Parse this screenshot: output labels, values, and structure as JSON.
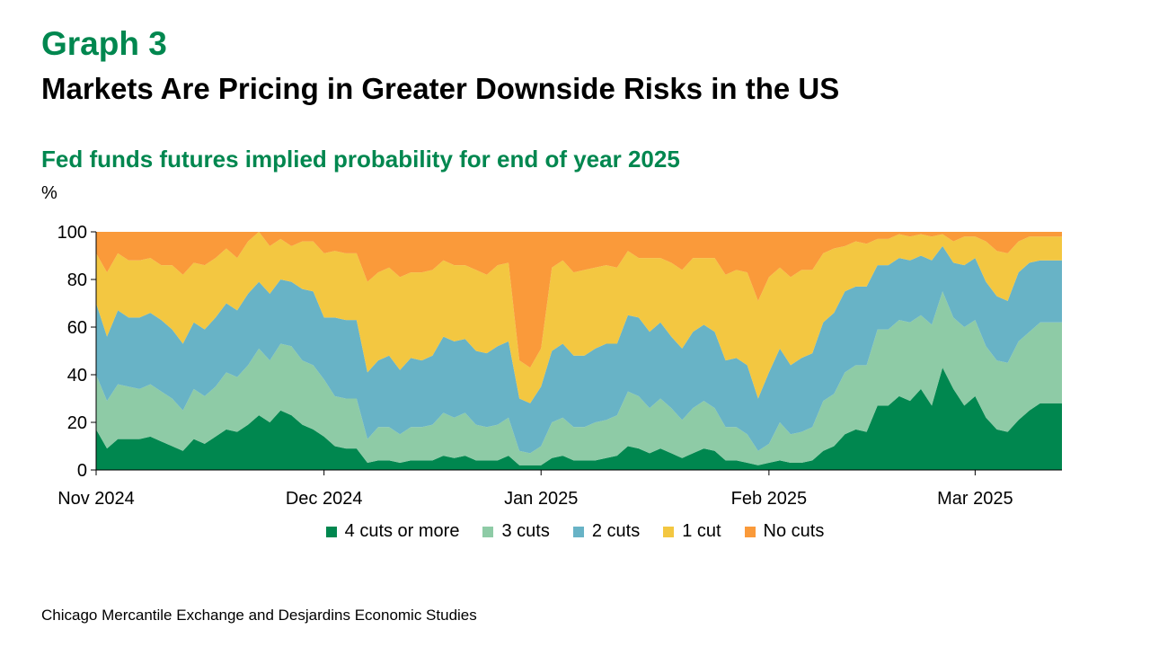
{
  "header": {
    "graph_label": "Graph 3",
    "title": "Markets Are Pricing in Greater Downside Risks in the US",
    "subtitle": "Fed funds futures implied probability for end of year 2025",
    "y_unit": "%"
  },
  "source": "Chicago Mercantile Exchange and Desjardins Economic Studies",
  "colors": {
    "4 cuts or more": "#00874F",
    "3 cuts": "#8ECBA6",
    "2 cuts": "#68B3C6",
    "1 cut": "#F3C741",
    "No cuts": "#FA9A3A"
  },
  "chart_data": {
    "type": "area",
    "stacked": true,
    "xlabel": "",
    "ylabel": "%",
    "ylim": [
      0,
      100
    ],
    "yticks": [
      "0",
      "20",
      "40",
      "60",
      "80",
      "100"
    ],
    "x_tick_labels": [
      "Nov 2024",
      "Dec 2024",
      "Jan 2025",
      "Feb 2025",
      "Mar 2025"
    ],
    "x_tick_positions": [
      0,
      21,
      41,
      62,
      81
    ],
    "legend_position": "bottom",
    "x": [
      0,
      1,
      2,
      3,
      4,
      5,
      6,
      7,
      8,
      9,
      10,
      11,
      12,
      13,
      14,
      15,
      16,
      17,
      18,
      19,
      20,
      21,
      22,
      23,
      24,
      25,
      26,
      27,
      28,
      29,
      30,
      31,
      32,
      33,
      34,
      35,
      36,
      37,
      38,
      39,
      40,
      41,
      42,
      43,
      44,
      45,
      46,
      47,
      48,
      49,
      50,
      51,
      52,
      53,
      54,
      55,
      56,
      57,
      58,
      59,
      60,
      61,
      62,
      63,
      64,
      65,
      66,
      67,
      68,
      69,
      70,
      71,
      72,
      73,
      74,
      75,
      76,
      77,
      78,
      79,
      80,
      81,
      82,
      83,
      84,
      85,
      86,
      87,
      88,
      89
    ],
    "series": [
      {
        "name": "4 cuts or more",
        "values": [
          17,
          9,
          13,
          13,
          13,
          14,
          12,
          10,
          8,
          13,
          11,
          14,
          17,
          16,
          19,
          23,
          20,
          25,
          23,
          19,
          17,
          14,
          10,
          9,
          9,
          3,
          4,
          4,
          3,
          4,
          4,
          4,
          6,
          5,
          6,
          4,
          4,
          4,
          6,
          2,
          2,
          2,
          5,
          6,
          4,
          4,
          4,
          5,
          6,
          10,
          9,
          7,
          9,
          7,
          5,
          7,
          9,
          8,
          4,
          4,
          3,
          2,
          3,
          4,
          3,
          3,
          4,
          8,
          10,
          15,
          17,
          16,
          27,
          27,
          31,
          29,
          34,
          27,
          43,
          34,
          27,
          31,
          22,
          17,
          16,
          21,
          25,
          28,
          28,
          28
        ]
      },
      {
        "name": "3 cuts",
        "values": [
          23,
          20,
          23,
          22,
          21,
          22,
          21,
          20,
          17,
          21,
          20,
          21,
          24,
          23,
          25,
          28,
          26,
          28,
          29,
          27,
          27,
          24,
          21,
          21,
          21,
          10,
          14,
          14,
          12,
          14,
          14,
          15,
          18,
          17,
          18,
          15,
          14,
          15,
          16,
          6,
          5,
          8,
          15,
          16,
          14,
          14,
          16,
          16,
          17,
          23,
          22,
          19,
          21,
          19,
          16,
          19,
          20,
          18,
          14,
          14,
          12,
          6,
          8,
          16,
          12,
          13,
          14,
          21,
          22,
          26,
          27,
          28,
          32,
          32,
          32,
          33,
          31,
          34,
          32,
          30,
          33,
          32,
          30,
          29,
          29,
          33,
          33,
          34,
          34,
          34
        ]
      },
      {
        "name": "2 cuts",
        "values": [
          30,
          27,
          31,
          29,
          30,
          30,
          30,
          29,
          28,
          28,
          28,
          29,
          29,
          28,
          30,
          28,
          28,
          27,
          27,
          30,
          31,
          26,
          33,
          33,
          33,
          28,
          28,
          30,
          27,
          29,
          28,
          29,
          32,
          32,
          31,
          31,
          31,
          33,
          32,
          22,
          21,
          25,
          30,
          31,
          30,
          30,
          31,
          32,
          30,
          32,
          33,
          32,
          32,
          30,
          30,
          32,
          32,
          32,
          28,
          29,
          29,
          22,
          30,
          31,
          29,
          31,
          31,
          33,
          34,
          34,
          33,
          33,
          27,
          27,
          26,
          26,
          25,
          27,
          19,
          23,
          26,
          26,
          27,
          27,
          26,
          29,
          29,
          26,
          26,
          26
        ]
      },
      {
        "name": "1 cut",
        "values": [
          21,
          27,
          24,
          24,
          24,
          23,
          23,
          27,
          29,
          25,
          27,
          25,
          23,
          22,
          22,
          21,
          20,
          17,
          15,
          20,
          21,
          27,
          28,
          28,
          28,
          38,
          37,
          37,
          39,
          36,
          37,
          36,
          32,
          32,
          31,
          34,
          33,
          34,
          33,
          16,
          15,
          16,
          35,
          35,
          35,
          36,
          34,
          33,
          32,
          27,
          25,
          31,
          27,
          31,
          33,
          31,
          28,
          31,
          36,
          37,
          39,
          41,
          40,
          34,
          37,
          37,
          35,
          29,
          27,
          19,
          19,
          18,
          11,
          11,
          10,
          10,
          9,
          10,
          5,
          9,
          12,
          9,
          17,
          19,
          20,
          13,
          11,
          10,
          10,
          10
        ]
      },
      {
        "name": "No cuts",
        "values": [
          9,
          17,
          9,
          12,
          12,
          11,
          14,
          14,
          18,
          13,
          14,
          11,
          7,
          11,
          4,
          0,
          6,
          3,
          6,
          4,
          4,
          9,
          8,
          9,
          9,
          21,
          17,
          15,
          19,
          17,
          17,
          16,
          12,
          14,
          14,
          16,
          18,
          14,
          13,
          54,
          57,
          49,
          15,
          12,
          17,
          16,
          15,
          14,
          15,
          8,
          11,
          11,
          11,
          13,
          16,
          11,
          11,
          11,
          18,
          16,
          17,
          29,
          19,
          15,
          19,
          16,
          16,
          9,
          7,
          6,
          4,
          5,
          3,
          3,
          1,
          2,
          1,
          2,
          1,
          4,
          2,
          2,
          4,
          8,
          9,
          4,
          2,
          2,
          2,
          2
        ]
      }
    ]
  }
}
